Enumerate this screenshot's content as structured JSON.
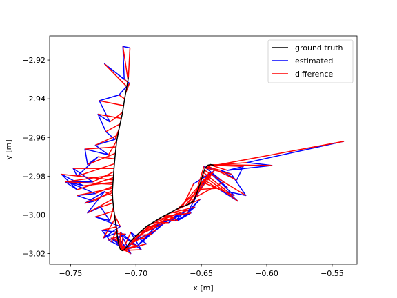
{
  "chart_data": {
    "type": "line",
    "title": "",
    "xlabel": "x [m]",
    "ylabel": "y [m]",
    "xlim": [
      -0.766,
      -0.531
    ],
    "ylim": [
      -3.0255,
      -2.9075
    ],
    "xticks": [
      -0.75,
      -0.7,
      -0.65,
      -0.6,
      -0.55
    ],
    "xtick_labels": [
      "−0.75",
      "−0.70",
      "−0.65",
      "−0.60",
      "−0.55"
    ],
    "yticks": [
      -2.92,
      -2.94,
      -2.96,
      -2.98,
      -3.0,
      -3.02
    ],
    "ytick_labels": [
      "−2.92",
      "−2.94",
      "−2.96",
      "−2.98",
      "−3.00",
      "−3.02"
    ],
    "grid": false,
    "legend_position": "top-right",
    "series": [
      {
        "name": "ground truth",
        "color": "#000000",
        "x": [
          -0.7058,
          -0.7065,
          -0.7085,
          -0.7105,
          -0.7128,
          -0.7148,
          -0.716,
          -0.7168,
          -0.7172,
          -0.7175,
          -0.7178,
          -0.718,
          -0.7178,
          -0.717,
          -0.716,
          -0.715,
          -0.7142,
          -0.7135,
          -0.7128,
          -0.7118,
          -0.7105,
          -0.709,
          -0.707,
          -0.7045,
          -0.701,
          -0.697,
          -0.692,
          -0.686,
          -0.68,
          -0.674,
          -0.67,
          -0.666,
          -0.661,
          -0.656,
          -0.653,
          -0.6505,
          -0.6488,
          -0.6472,
          -0.6455,
          -0.643,
          -0.64
        ],
        "y": [
          -2.929,
          -2.932,
          -2.9395,
          -2.948,
          -2.955,
          -2.962,
          -2.97,
          -2.976,
          -2.98,
          -2.983,
          -2.9855,
          -2.988,
          -2.992,
          -2.997,
          -3.002,
          -3.007,
          -3.011,
          -3.014,
          -3.0165,
          -3.018,
          -3.0185,
          -3.018,
          -3.0165,
          -3.014,
          -3.0115,
          -3.009,
          -3.006,
          -3.0035,
          -3.001,
          -2.999,
          -2.9975,
          -2.996,
          -2.995,
          -2.993,
          -2.988,
          -2.983,
          -2.979,
          -2.976,
          -2.9745,
          -2.974,
          -2.9745
        ]
      },
      {
        "name": "estimated",
        "color": "#0000ff",
        "x": [
          -0.7046,
          -0.71,
          -0.709,
          -0.724,
          -0.705,
          -0.713,
          -0.728,
          -0.72,
          -0.729,
          -0.723,
          -0.716,
          -0.731,
          -0.721,
          -0.739,
          -0.737,
          -0.729,
          -0.745,
          -0.748,
          -0.733,
          -0.754,
          -0.745,
          -0.757,
          -0.74,
          -0.752,
          -0.731,
          -0.745,
          -0.732,
          -0.739,
          -0.724,
          -0.737,
          -0.727,
          -0.72,
          -0.731,
          -0.712,
          -0.725,
          -0.714,
          -0.726,
          -0.719,
          -0.708,
          -0.721,
          -0.71,
          -0.719,
          -0.706,
          -0.715,
          -0.704,
          -0.712,
          -0.699,
          -0.71,
          -0.696,
          -0.704,
          -0.692,
          -0.708,
          -0.69,
          -0.7,
          -0.685,
          -0.699,
          -0.682,
          -0.693,
          -0.678,
          -0.688,
          -0.676,
          -0.686,
          -0.67,
          -0.683,
          -0.666,
          -0.675,
          -0.662,
          -0.67,
          -0.658,
          -0.668,
          -0.655,
          -0.662,
          -0.651,
          -0.66,
          -0.65,
          -0.644,
          -0.656,
          -0.642,
          -0.65,
          -0.64,
          -0.648,
          -0.633,
          -0.644,
          -0.63,
          -0.642,
          -0.625,
          -0.636,
          -0.622,
          -0.63,
          -0.616,
          -0.627,
          -0.635,
          -0.623,
          -0.618,
          -0.63,
          -0.596,
          -0.615,
          -0.541
        ],
        "y": [
          -2.9137,
          -2.913,
          -2.93,
          -2.922,
          -2.932,
          -2.938,
          -2.941,
          -2.952,
          -2.948,
          -2.957,
          -2.961,
          -2.964,
          -2.969,
          -2.966,
          -2.974,
          -2.97,
          -2.98,
          -2.976,
          -2.983,
          -2.983,
          -2.987,
          -2.979,
          -2.985,
          -2.983,
          -2.989,
          -2.99,
          -2.993,
          -2.994,
          -2.988,
          -2.999,
          -2.996,
          -3.003,
          -3.001,
          -3.006,
          -3.012,
          -3.009,
          -3.008,
          -3.014,
          -3.01,
          -3.013,
          -3.017,
          -3.012,
          -3.018,
          -3.011,
          -3.02,
          -3.009,
          -3.016,
          -3.011,
          -3.018,
          -3.009,
          -3.015,
          -3.018,
          -3.006,
          -3.013,
          -3.008,
          -3.016,
          -3.004,
          -3.012,
          -3.004,
          -3.01,
          -3.002,
          -3.007,
          -3.001,
          -3.006,
          -2.999,
          -3.004,
          -2.998,
          -3.003,
          -2.999,
          -3.003,
          -2.996,
          -3.0,
          -2.992,
          -2.998,
          -2.986,
          -2.979,
          -2.984,
          -2.978,
          -2.983,
          -2.977,
          -2.975,
          -2.983,
          -2.978,
          -2.986,
          -2.979,
          -2.99,
          -2.987,
          -2.993,
          -2.988,
          -2.99,
          -2.979,
          -2.977,
          -2.982,
          -2.975,
          -2.977,
          -2.9745,
          -2.973,
          -2.962
        ]
      },
      {
        "name": "difference",
        "color": "#ff0000"
      }
    ]
  }
}
